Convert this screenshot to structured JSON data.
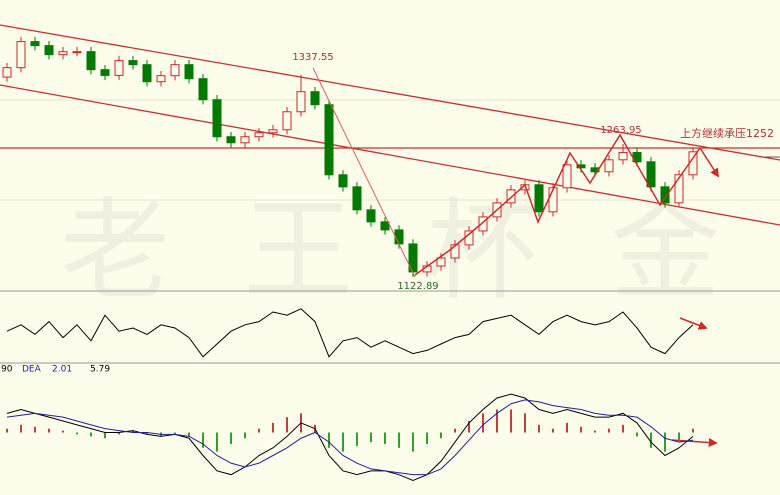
{
  "chart_data": {
    "type": "candlestick",
    "watermark": "老王杯金",
    "annotations": [
      "1337.55",
      "1122.89",
      "1263.95",
      "上方继续承压1252"
    ],
    "ylim": [
      1109,
      1385
    ],
    "up_color": "#d02828",
    "down_color": "#007a00",
    "open": [
      1335.0,
      1345.0,
      1372.7,
      1368.4,
      1358.8,
      1362.0,
      1362.0,
      1342.9,
      1336.8,
      1352.5,
      1348.2,
      1330.1,
      1336.5,
      1348.2,
      1333.3,
      1311.0,
      1271.7,
      1265.3,
      1271.7,
      1275.9,
      1279.1,
      1298.2,
      1319.5,
      1305.7,
      1231.3,
      1218.5,
      1194.1,
      1181.3,
      1172.8,
      1157.9,
      1128.2,
      1134.5,
      1143.0,
      1156.9,
      1171.7,
      1186.6,
      1201.5,
      1215.3,
      1220.7,
      1192.0,
      1217.5,
      1241.9,
      1238.7,
      1234.5,
      1247.2,
      1255.0,
      1245.1,
      1218.5,
      1201.5,
      1231.3
    ],
    "close": [
      1345.0,
      1372.7,
      1368.4,
      1358.8,
      1362.0,
      1362.0,
      1342.9,
      1336.8,
      1352.5,
      1348.2,
      1330.1,
      1336.5,
      1348.2,
      1333.3,
      1311.0,
      1271.7,
      1265.3,
      1271.7,
      1275.9,
      1279.1,
      1298.2,
      1319.5,
      1305.7,
      1231.3,
      1218.5,
      1194.1,
      1181.3,
      1172.8,
      1157.9,
      1128.2,
      1134.5,
      1143.0,
      1156.9,
      1171.7,
      1186.6,
      1201.5,
      1215.3,
      1220.7,
      1192.0,
      1217.5,
      1241.9,
      1238.7,
      1234.5,
      1247.2,
      1255.0,
      1245.1,
      1218.5,
      1201.5,
      1231.3,
      1255.7
    ],
    "high": [
      1350.0,
      1377.7,
      1377.7,
      1373.4,
      1367.0,
      1367.0,
      1367.0,
      1347.9,
      1357.5,
      1357.5,
      1353.2,
      1341.5,
      1353.2,
      1353.2,
      1338.3,
      1316.0,
      1276.7,
      1276.7,
      1280.9,
      1284.1,
      1303.2,
      1337.55,
      1324.5,
      1310.7,
      1236.3,
      1223.5,
      1199.1,
      1186.3,
      1177.8,
      1162.9,
      1139.5,
      1148.0,
      1161.9,
      1176.7,
      1191.6,
      1206.5,
      1220.3,
      1225.7,
      1225.7,
      1222.5,
      1246.9,
      1246.9,
      1243.7,
      1252.2,
      1263.95,
      1260.0,
      1250.1,
      1223.5,
      1236.3,
      1260.7
    ],
    "low": [
      1330.0,
      1340.0,
      1363.4,
      1353.8,
      1353.8,
      1357.0,
      1337.9,
      1331.8,
      1331.8,
      1343.2,
      1325.1,
      1325.1,
      1331.5,
      1328.3,
      1306.0,
      1266.7,
      1260.3,
      1260.3,
      1266.7,
      1270.9,
      1274.1,
      1293.2,
      1300.7,
      1226.3,
      1213.5,
      1189.1,
      1176.3,
      1167.8,
      1152.9,
      1122.89,
      1123.2,
      1129.5,
      1138.0,
      1151.9,
      1166.7,
      1181.6,
      1196.5,
      1210.3,
      1187.0,
      1187.0,
      1212.5,
      1233.7,
      1229.5,
      1229.5,
      1242.2,
      1240.1,
      1213.5,
      1196.5,
      1196.5,
      1226.3
    ],
    "oscillator": {
      "ylim": [
        0,
        100
      ],
      "color": "#000000",
      "values": [
        45,
        55,
        40,
        60,
        35,
        55,
        30,
        70,
        45,
        50,
        40,
        55,
        50,
        35,
        5,
        25,
        45,
        55,
        60,
        75,
        70,
        80,
        60,
        5,
        30,
        35,
        20,
        30,
        20,
        10,
        15,
        25,
        35,
        40,
        60,
        65,
        70,
        55,
        40,
        60,
        70,
        60,
        55,
        60,
        75,
        50,
        20,
        10,
        35,
        55
      ]
    },
    "macd": {
      "ylim": [
        -30,
        30
      ],
      "fragment": "90",
      "name": "DEA",
      "readouts": [
        2.01,
        5.79
      ],
      "histogram": [
        2,
        4,
        3,
        2,
        1,
        -1,
        -2,
        -3,
        -1,
        1,
        -1,
        -2,
        -1,
        -2,
        -8,
        -10,
        -6,
        -3,
        2,
        5,
        8,
        10,
        4,
        -8,
        -10,
        -7,
        -5,
        -6,
        -8,
        -10,
        -6,
        -3,
        2,
        6,
        10,
        12,
        12,
        10,
        4,
        2,
        5,
        3,
        1,
        2,
        4,
        -2,
        -8,
        -10,
        -4,
        2
      ],
      "lines": [
        {
          "color": "#000000",
          "values": [
            10,
            12,
            10,
            8,
            6,
            4,
            2,
            0,
            0,
            1,
            -1,
            -2,
            -1,
            -3,
            -12,
            -20,
            -22,
            -18,
            -12,
            -8,
            -2,
            5,
            2,
            -12,
            -20,
            -22,
            -20,
            -20,
            -22,
            -25,
            -22,
            -15,
            -5,
            5,
            12,
            18,
            20,
            18,
            12,
            10,
            12,
            10,
            8,
            8,
            10,
            5,
            -5,
            -12,
            -8,
            -2
          ]
        },
        {
          "color": "#2020a0",
          "values": [
            8,
            9,
            10,
            9,
            8,
            6,
            4,
            2,
            1,
            0,
            0,
            -1,
            -1,
            -2,
            -6,
            -12,
            -16,
            -18,
            -16,
            -12,
            -8,
            -3,
            0,
            -5,
            -12,
            -16,
            -19,
            -20,
            -21,
            -22,
            -22,
            -19,
            -12,
            -4,
            4,
            10,
            15,
            17,
            16,
            14,
            13,
            12,
            10,
            9,
            9,
            8,
            3,
            -3,
            -5,
            -4
          ]
        }
      ]
    }
  }
}
